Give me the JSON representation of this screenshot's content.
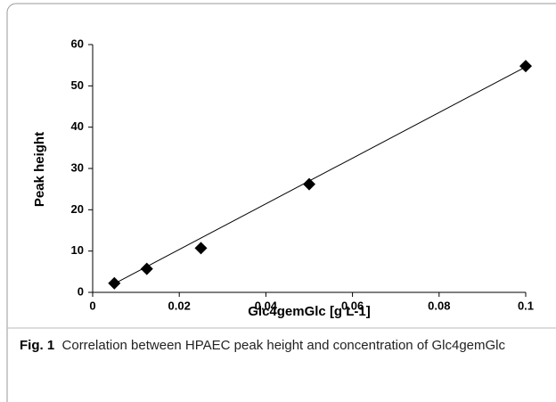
{
  "chart_data": {
    "type": "scatter",
    "x_label": "Glc4gemGlc [g L-1]",
    "y_label": "Peak height",
    "x": [
      0.005,
      0.0125,
      0.025,
      0.05,
      0.1
    ],
    "values": [
      2.2,
      5.7,
      10.7,
      26.2,
      54.8
    ],
    "color": "#000000",
    "trendline": {
      "x": [
        0.005,
        0.1
      ],
      "values": [
        2.1,
        54.6
      ]
    },
    "xlim": [
      0,
      0.1
    ],
    "xticks": [
      0,
      0.02,
      0.04,
      0.06,
      0.08,
      0.1
    ],
    "ylim": [
      0,
      60
    ],
    "yticks": [
      0,
      10,
      20,
      30,
      40,
      50,
      60
    ],
    "grid": false
  },
  "caption": {
    "label": "Fig. 1",
    "text": "Correlation between HPAEC peak height and concentration of Glc4gemGlc"
  }
}
